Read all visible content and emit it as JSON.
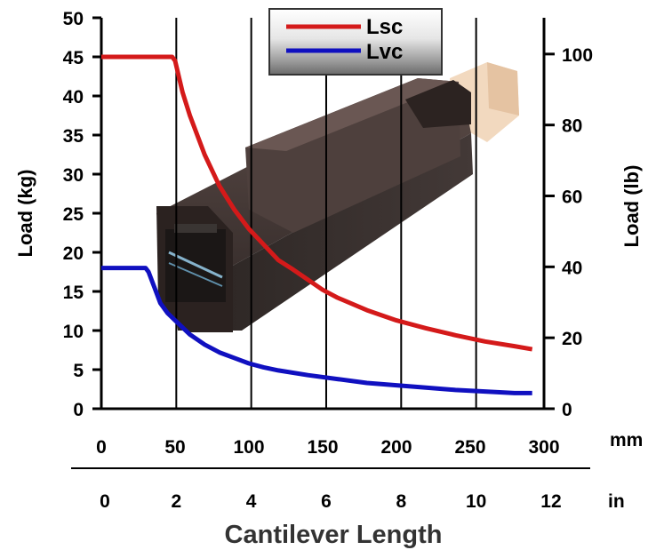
{
  "chart_data": {
    "type": "line",
    "title": "",
    "xlabel": "Cantilever Length",
    "x_unit_primary": "mm",
    "x_unit_secondary": "in",
    "xlim": [
      0,
      300
    ],
    "x_ticks_mm": [
      "0",
      "50",
      "100",
      "150",
      "200",
      "250",
      "300"
    ],
    "x_ticks_in": [
      "0",
      "2",
      "4",
      "6",
      "8",
      "10",
      "12"
    ],
    "ylabel_left": "Load (kg)",
    "ylim_left": [
      0,
      50
    ],
    "y_ticks_left": [
      "0",
      "5",
      "10",
      "15",
      "20",
      "25",
      "30",
      "35",
      "40",
      "45",
      "50"
    ],
    "ylabel_right": "Load (lb)",
    "y_ticks_right": [
      "0",
      "20",
      "40",
      "60",
      "80",
      "100"
    ],
    "grid": "vertical",
    "legend_position": "top-center",
    "background_image": "linear-stage-photo",
    "series": [
      {
        "name": "Lsc",
        "color": "#d41a1a",
        "x": [
          0,
          25,
          48,
          50,
          55,
          60,
          70,
          80,
          90,
          100,
          110,
          120,
          130,
          140,
          150,
          160,
          180,
          200,
          220,
          240,
          260,
          280,
          292
        ],
        "y": [
          45,
          45,
          45,
          44.5,
          40.5,
          37.5,
          32.5,
          28.5,
          25.5,
          23,
          21,
          19,
          17.8,
          16.5,
          15.2,
          14.2,
          12.6,
          11.3,
          10.3,
          9.4,
          8.6,
          8.0,
          7.6
        ]
      },
      {
        "name": "Lvc",
        "color": "#1010c0",
        "x": [
          0,
          20,
          30,
          32,
          36,
          40,
          45,
          50,
          60,
          70,
          80,
          90,
          100,
          110,
          120,
          140,
          160,
          180,
          200,
          220,
          240,
          260,
          280,
          292
        ],
        "y": [
          18,
          18,
          18,
          17.5,
          15.5,
          13.5,
          12.2,
          11.3,
          9.5,
          8.2,
          7.2,
          6.5,
          5.8,
          5.3,
          4.9,
          4.3,
          3.8,
          3.3,
          3.0,
          2.7,
          2.4,
          2.2,
          2.0,
          2.0
        ]
      }
    ]
  }
}
